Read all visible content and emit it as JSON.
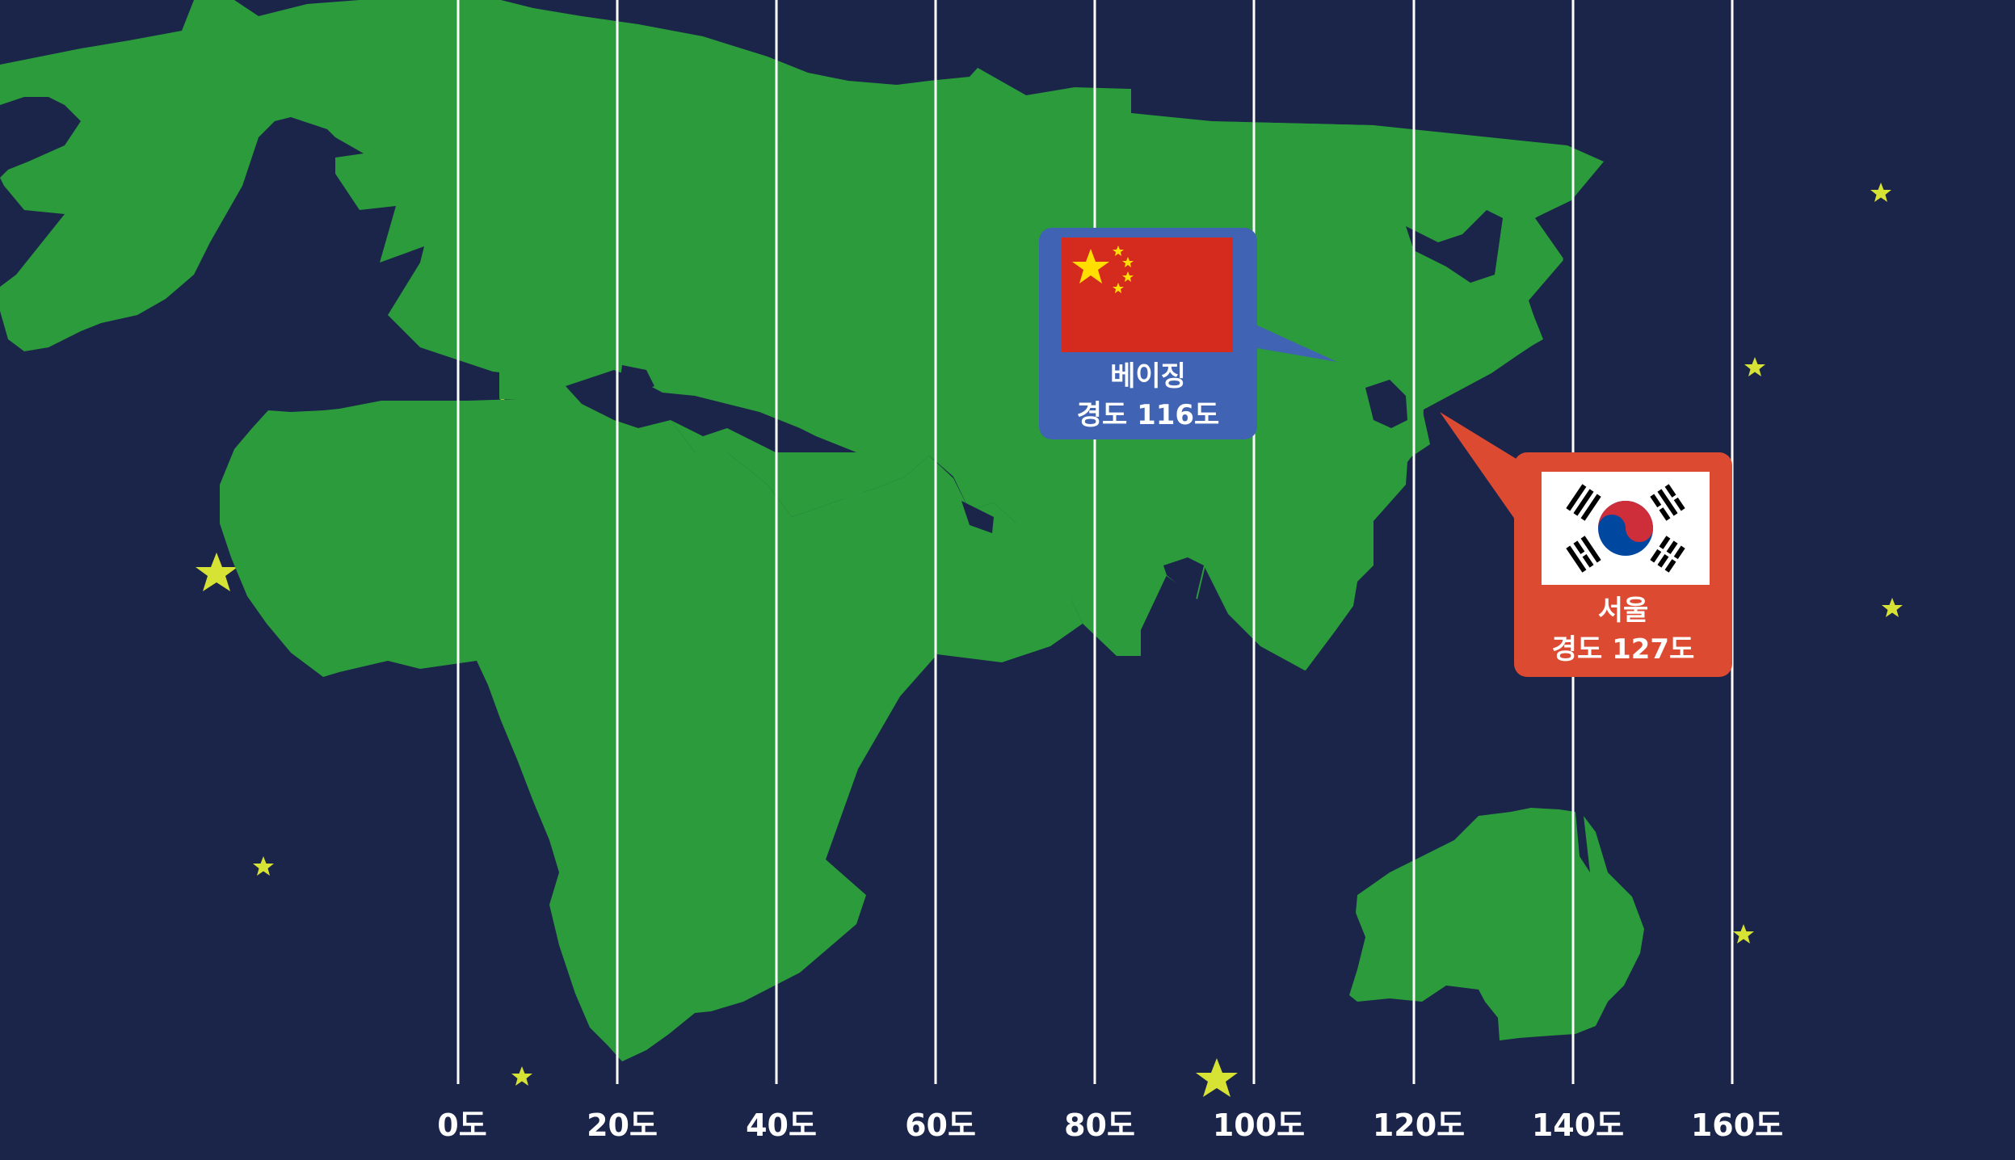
{
  "map": {
    "colors": {
      "ocean": "#1b2449",
      "land": "#2b9b3c",
      "meridian": "#ffffff",
      "star": "#d6e335"
    },
    "meridian_labels": [
      "0도",
      "20도",
      "40도",
      "60도",
      "80도",
      "100도",
      "120도",
      "140도",
      "160도"
    ]
  },
  "beijing": {
    "name": "베이징",
    "longitude": "경도 116도",
    "color": "#4064b3",
    "flag": "china-flag"
  },
  "seoul": {
    "name": "서울",
    "longitude": "경도 127도",
    "color": "#dc4a32",
    "flag": "korea-flag"
  }
}
